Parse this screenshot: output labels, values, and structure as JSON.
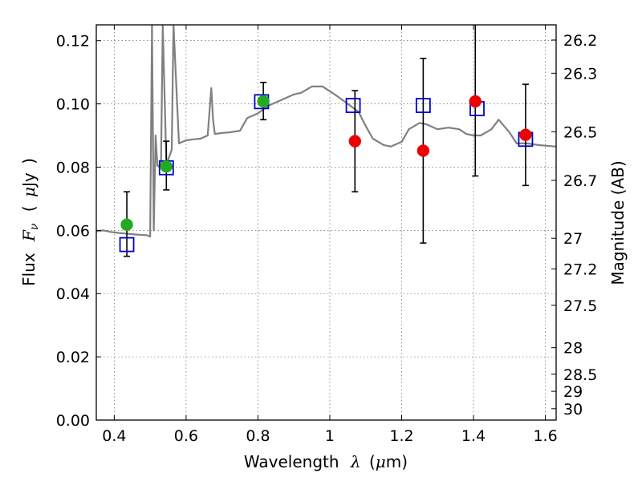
{
  "chart_data": {
    "type": "scatter",
    "xlabel_text": "Wavelength",
    "xlabel_symbol": "λ",
    "xlabel_unit_open": "(",
    "xlabel_unit_mu": "μ",
    "xlabel_unit_rest": "m)",
    "ylabel_text": "Flux",
    "ylabel_symbol": "F",
    "ylabel_sub": "ν",
    "ylabel_unit_open": "(",
    "ylabel_unit_mu": "μ",
    "ylabel_unit_rest": "Jy",
    "ylabel_unit_close": ")",
    "y2label": "Magnitude (AB)",
    "xlim": [
      0.35,
      1.63
    ],
    "ylim": [
      0.0,
      0.125
    ],
    "grid": true,
    "xticks": [
      {
        "v": 0.4,
        "label": "0.4"
      },
      {
        "v": 0.6,
        "label": "0.6"
      },
      {
        "v": 0.8,
        "label": "0.8"
      },
      {
        "v": 1.0,
        "label": "1"
      },
      {
        "v": 1.2,
        "label": "1.2"
      },
      {
        "v": 1.4,
        "label": "1.4"
      },
      {
        "v": 1.6,
        "label": "1.6"
      }
    ],
    "yticks": [
      {
        "v": 0.0,
        "label": "0.00"
      },
      {
        "v": 0.02,
        "label": "0.02"
      },
      {
        "v": 0.04,
        "label": "0.04"
      },
      {
        "v": 0.06,
        "label": "0.06"
      },
      {
        "v": 0.08,
        "label": "0.08"
      },
      {
        "v": 0.1,
        "label": "0.10"
      },
      {
        "v": 0.12,
        "label": "0.12"
      }
    ],
    "mag_ticks": [
      {
        "flux": 0.1202,
        "label": "26.2"
      },
      {
        "flux": 0.1097,
        "label": "26.3"
      },
      {
        "flux": 0.0912,
        "label": "26.5"
      },
      {
        "flux": 0.0758,
        "label": "26.7"
      },
      {
        "flux": 0.0575,
        "label": "27"
      },
      {
        "flux": 0.0478,
        "label": "27.2"
      },
      {
        "flux": 0.0363,
        "label": "27.5"
      },
      {
        "flux": 0.0229,
        "label": "28"
      },
      {
        "flux": 0.0145,
        "label": "28.5"
      },
      {
        "flux": 0.0091,
        "label": "29"
      },
      {
        "flux": 0.0036,
        "label": "30"
      }
    ],
    "series": [
      {
        "kind": "model_spectrum",
        "color": "#808080",
        "x": [
          0.35,
          0.37,
          0.39,
          0.41,
          0.43,
          0.45,
          0.47,
          0.49,
          0.5,
          0.505,
          0.51,
          0.515,
          0.52,
          0.53,
          0.535,
          0.545,
          0.55,
          0.56,
          0.565,
          0.58,
          0.6,
          0.62,
          0.64,
          0.66,
          0.67,
          0.675,
          0.68,
          0.7,
          0.72,
          0.75,
          0.77,
          0.8,
          0.83,
          0.86,
          0.88,
          0.9,
          0.92,
          0.95,
          0.98,
          1.0,
          1.02,
          1.05,
          1.08,
          1.1,
          1.12,
          1.15,
          1.17,
          1.2,
          1.22,
          1.25,
          1.27,
          1.3,
          1.33,
          1.36,
          1.38,
          1.4,
          1.42,
          1.45,
          1.47,
          1.5,
          1.52,
          1.55,
          1.58,
          1.6,
          1.63
        ],
        "y": [
          0.0597,
          0.06,
          0.0595,
          0.0592,
          0.059,
          0.0588,
          0.0586,
          0.0585,
          0.058,
          0.125,
          0.06,
          0.09,
          0.0805,
          0.08,
          0.125,
          0.081,
          0.0823,
          0.0855,
          0.125,
          0.0875,
          0.0885,
          0.0888,
          0.089,
          0.09,
          0.105,
          0.095,
          0.0905,
          0.0908,
          0.091,
          0.0915,
          0.0955,
          0.097,
          0.0995,
          0.101,
          0.102,
          0.103,
          0.1035,
          0.1055,
          0.1055,
          0.104,
          0.1025,
          0.1,
          0.0975,
          0.093,
          0.089,
          0.087,
          0.0865,
          0.088,
          0.092,
          0.094,
          0.0935,
          0.092,
          0.0925,
          0.092,
          0.0905,
          0.09,
          0.09,
          0.092,
          0.095,
          0.091,
          0.0875,
          0.0875,
          0.087,
          0.0868,
          0.0865
        ]
      },
      {
        "kind": "model_bandpass",
        "color": "#0000cc",
        "points": [
          {
            "x": 0.435,
            "y": 0.0555
          },
          {
            "x": 0.545,
            "y": 0.0798
          },
          {
            "x": 0.81,
            "y": 0.1007
          },
          {
            "x": 1.065,
            "y": 0.0995
          },
          {
            "x": 1.26,
            "y": 0.0995
          },
          {
            "x": 1.41,
            "y": 0.0985
          },
          {
            "x": 1.545,
            "y": 0.0888
          }
        ]
      },
      {
        "kind": "observed_optical",
        "color": "#22aa22",
        "points": [
          {
            "x": 0.435,
            "y": 0.0618,
            "lo": 0.0518,
            "hi": 0.0722
          },
          {
            "x": 0.545,
            "y": 0.0802,
            "lo": 0.0728,
            "hi": 0.0882
          },
          {
            "x": 0.815,
            "y": 0.1008,
            "lo": 0.095,
            "hi": 0.1068
          }
        ]
      },
      {
        "kind": "observed_nir",
        "color": "#ee0000",
        "points": [
          {
            "x": 1.07,
            "y": 0.0882,
            "lo": 0.0722,
            "hi": 0.1042
          },
          {
            "x": 1.26,
            "y": 0.0852,
            "lo": 0.056,
            "hi": 0.1144
          },
          {
            "x": 1.405,
            "y": 0.1008,
            "lo": 0.0772,
            "hi": 0.125
          },
          {
            "x": 1.545,
            "y": 0.0902,
            "lo": 0.0742,
            "hi": 0.1062
          }
        ]
      }
    ]
  }
}
